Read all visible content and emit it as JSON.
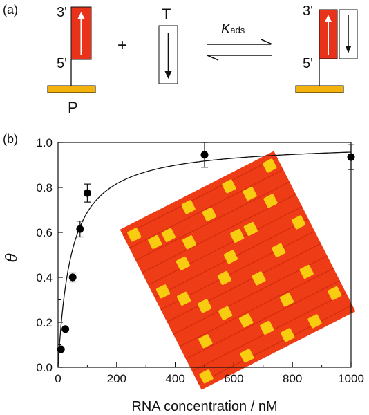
{
  "scheme": {
    "panel_a": "(a)",
    "probe_label": "P",
    "target_label": "T",
    "plus": "+",
    "k_main": "K",
    "k_sub": "ads",
    "left_3p": "3'",
    "left_5p": "5'",
    "right_3p": "3'",
    "right_5p": "5'",
    "colors": {
      "probe": "#e8321a",
      "surface": "#f4b30c"
    }
  },
  "chart_data": {
    "panel": "(b)",
    "type": "scatter",
    "xlabel": "RNA concentration / nM",
    "ylabel": "θ",
    "xlim": [
      0,
      1000
    ],
    "ylim": [
      0,
      1
    ],
    "xticks": [
      "0",
      "200",
      "400",
      "600",
      "800",
      "1000"
    ],
    "yticks": [
      "0.0",
      "0.2",
      "0.4",
      "0.6",
      "0.8",
      "1.0"
    ],
    "points": [
      {
        "x": 10,
        "y": 0.08,
        "err": 0
      },
      {
        "x": 25,
        "y": 0.17,
        "err": 0
      },
      {
        "x": 50,
        "y": 0.4,
        "err": 0.02
      },
      {
        "x": 75,
        "y": 0.615,
        "err": 0.035
      },
      {
        "x": 100,
        "y": 0.775,
        "err": 0.04
      },
      {
        "x": 500,
        "y": 0.945,
        "err": 0.055
      },
      {
        "x": 1000,
        "y": 0.935,
        "err": 0.055
      }
    ],
    "fit": {
      "type": "langmuir",
      "theta_max": 1.0,
      "kd": 45
    },
    "colors": {
      "array_bg": "#ee3c16",
      "spot": "#f8cc10"
    }
  }
}
